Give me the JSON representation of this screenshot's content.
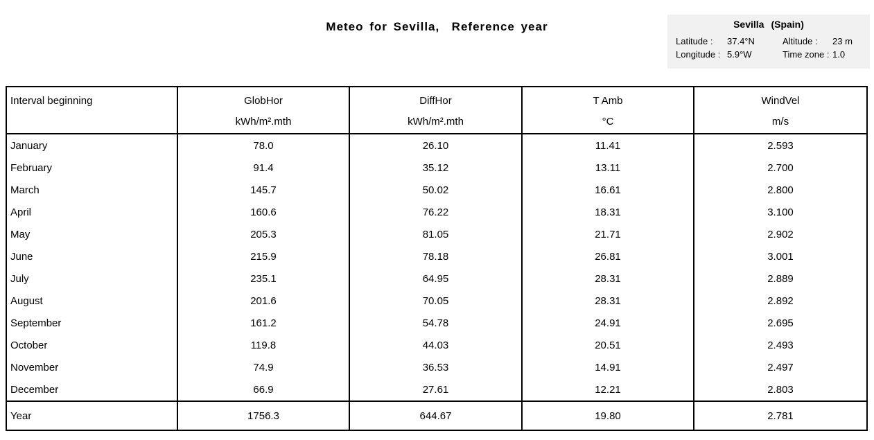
{
  "title": "Meteo for Sevilla,  Reference year",
  "location": {
    "city": "Sevilla",
    "country": "(Spain)",
    "latitude_label": "Latitude :",
    "latitude_value": "37.4°N",
    "altitude_label": "Altitude :",
    "altitude_value": "23 m",
    "longitude_label": "Longitude :",
    "longitude_value": "5.9°W",
    "timezone_label": "Time zone :",
    "timezone_value": "1.0"
  },
  "table": {
    "columns": [
      {
        "label": "Interval beginning",
        "unit": ""
      },
      {
        "label": "GlobHor",
        "unit": "kWh/m².mth"
      },
      {
        "label": "DiffHor",
        "unit": "kWh/m².mth"
      },
      {
        "label": "T Amb",
        "unit": "°C"
      },
      {
        "label": "WindVel",
        "unit": "m/s"
      }
    ],
    "rows": [
      [
        "January",
        "78.0",
        "26.10",
        "11.41",
        "2.593"
      ],
      [
        "February",
        "91.4",
        "35.12",
        "13.11",
        "2.700"
      ],
      [
        "March",
        "145.7",
        "50.02",
        "16.61",
        "2.800"
      ],
      [
        "April",
        "160.6",
        "76.22",
        "18.31",
        "3.100"
      ],
      [
        "May",
        "205.3",
        "81.05",
        "21.71",
        "2.902"
      ],
      [
        "June",
        "215.9",
        "78.18",
        "26.81",
        "3.001"
      ],
      [
        "July",
        "235.1",
        "64.95",
        "28.31",
        "2.889"
      ],
      [
        "August",
        "201.6",
        "70.05",
        "28.31",
        "2.892"
      ],
      [
        "September",
        "161.2",
        "54.78",
        "24.91",
        "2.695"
      ],
      [
        "October",
        "119.8",
        "44.03",
        "20.51",
        "2.493"
      ],
      [
        "November",
        "74.9",
        "36.53",
        "14.91",
        "2.497"
      ],
      [
        "December",
        "66.9",
        "27.61",
        "12.21",
        "2.803"
      ]
    ],
    "footer": [
      "Year",
      "1756.3",
      "644.67",
      "19.80",
      "2.781"
    ]
  },
  "colors": {
    "page_bg": "#ffffff",
    "panel_bg": "#f1f1f1",
    "border": "#000000",
    "text": "#000000"
  }
}
